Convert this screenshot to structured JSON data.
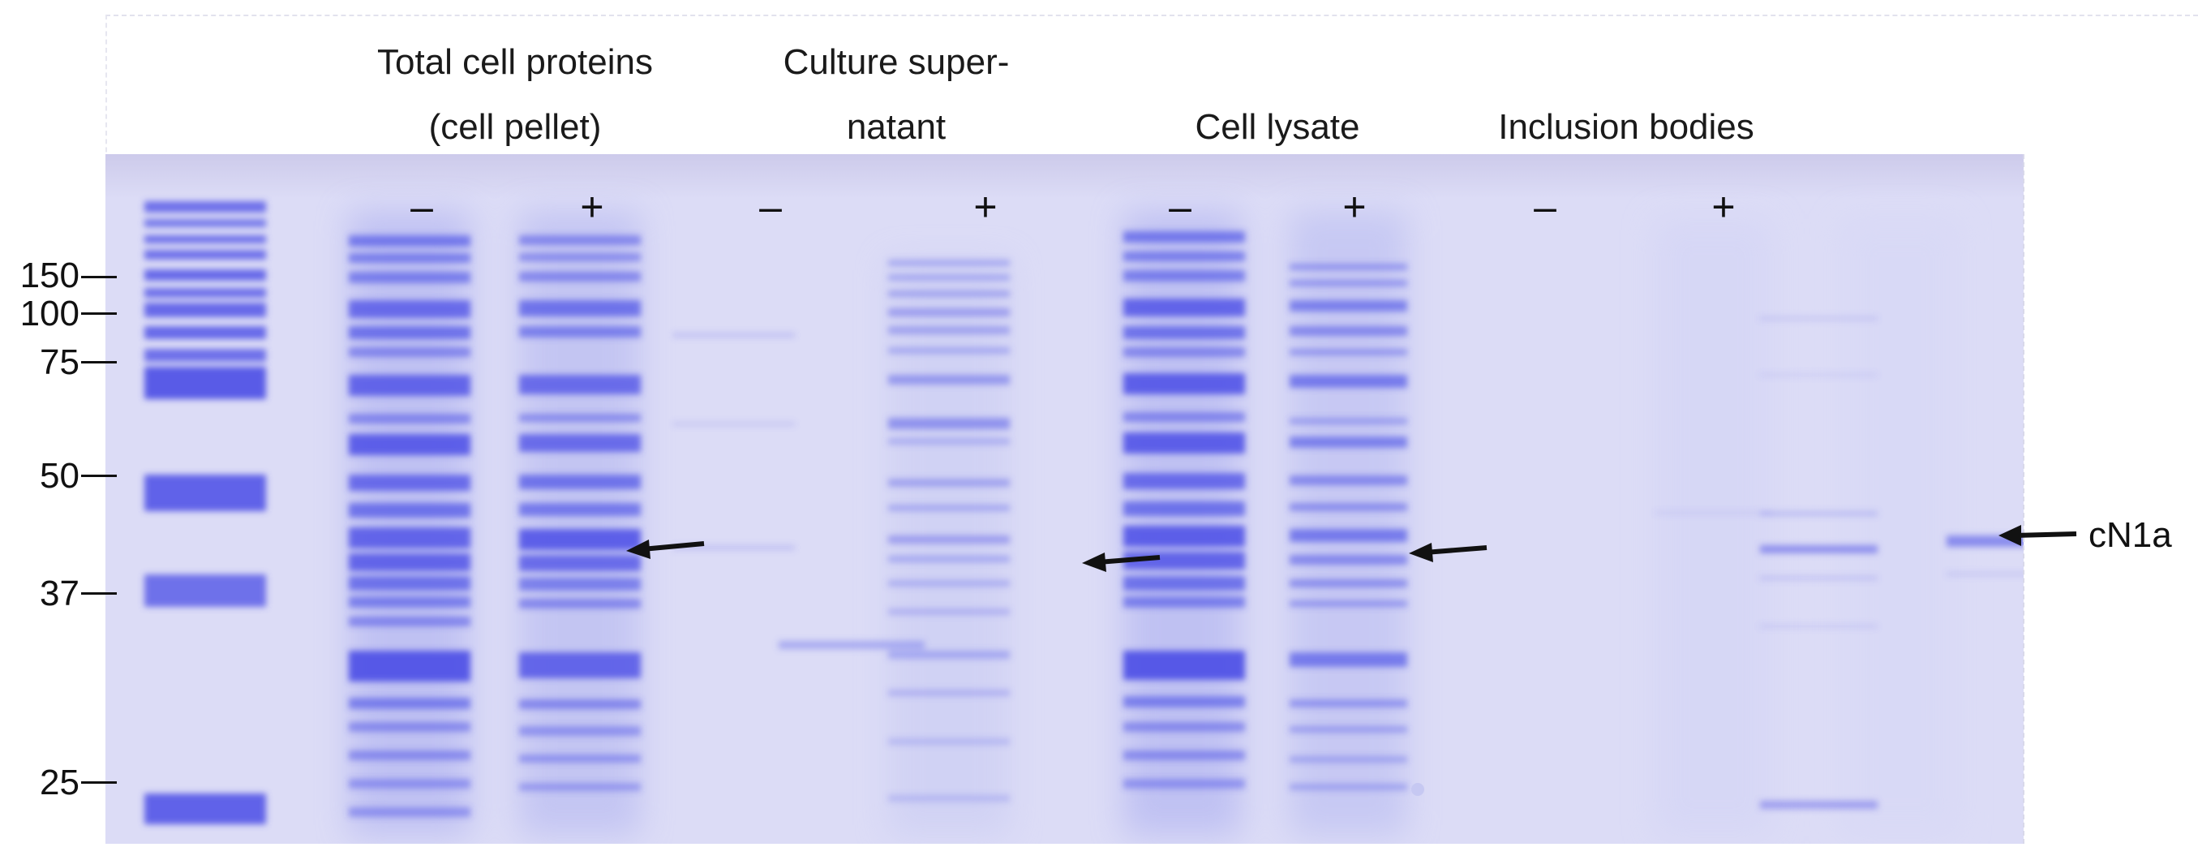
{
  "figure": {
    "groups": [
      {
        "id": "total",
        "label_line1": "Total cell proteins",
        "label_line2": "(cell pellet)"
      },
      {
        "id": "supernatant",
        "label_line1": "Culture super-",
        "label_line2": "natant"
      },
      {
        "id": "lysate",
        "label_line1": "Cell lysate",
        "label_line2": ""
      },
      {
        "id": "inclusion",
        "label_line1": "Inclusion bodies",
        "label_line2": ""
      }
    ],
    "lane_signs": [
      "–",
      "+",
      "–",
      "+",
      "–",
      "+",
      "–",
      "+"
    ],
    "marker_labels": [
      "150",
      "100",
      "75",
      "50",
      "37",
      "25"
    ],
    "protein_label": "cN1a",
    "colors": {
      "gel_background": "#dcdcf6",
      "band_strong": "#4a4ee6",
      "band_faint": "#b9bbf2"
    }
  }
}
